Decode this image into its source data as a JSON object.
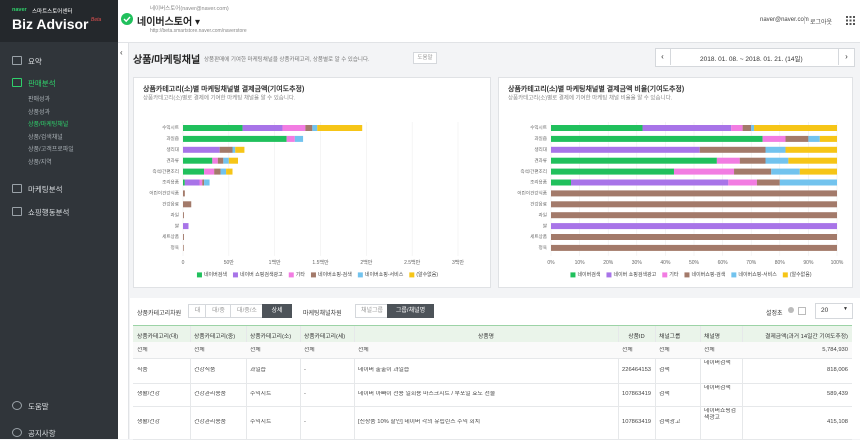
{
  "sidebar": {
    "logo": "naver",
    "center": "스마트스토어센터",
    "title": "Biz Advisor",
    "beta": "Beta",
    "menu": [
      {
        "label": "요약"
      },
      {
        "label": "판매분석",
        "sub": [
          "판매성과",
          "상품성과",
          "상품/마케팅채널",
          "상품/검색채널",
          "상품/고객프로파일",
          "상품/지역"
        ]
      },
      {
        "label": "마케팅분석"
      },
      {
        "label": "쇼핑행동분석"
      }
    ],
    "bottom": [
      "도움말",
      "공지사항"
    ]
  },
  "header": {
    "account": "네이버스토어(naver@naver.com)",
    "store": "네이버스토어 ▾",
    "url": "http://beta.smartstore.naver.com/naverstore",
    "email": "naver@naver.com",
    "logout": "로그아웃"
  },
  "page": {
    "title": "상품/마케팅채널",
    "subtitle": "상품판매에 기여한 마케팅채널을 상품카테고리, 상품별로 알 수 있습니다.",
    "help": "도움말",
    "date_range": "2018. 01. 08. ~ 2018. 01. 21. (14일)"
  },
  "chart_data": [
    {
      "type": "bar",
      "orientation": "horizontal",
      "stacked": true,
      "title": "상품카테고리(소)별 마케팅채널별 결제금액(기여도추정)",
      "subtitle": "상품카테고리(소)별로 결제에 기여한 마케팅 채널을 알 수 있습니다.",
      "categories": [
        "수익시트",
        "과일즙",
        "생리대",
        "견과류",
        "즉석/간편조리",
        "조리용품",
        "어린이건강식품",
        "건강음료",
        "과일",
        "쌀",
        "세트상품",
        "정육"
      ],
      "series": [
        {
          "name": "네이버검색",
          "color": "#20c05c",
          "values": [
            650000,
            1130000,
            0,
            320000,
            230000,
            20000,
            0,
            0,
            0,
            0,
            0,
            0
          ]
        },
        {
          "name": "네이버 쇼핑검색광고",
          "color": "#a874e8",
          "values": [
            435000,
            0,
            400000,
            0,
            0,
            160000,
            0,
            0,
            0,
            60000,
            0,
            0
          ]
        },
        {
          "name": "기타",
          "color": "#f27ce2",
          "values": [
            250000,
            90000,
            0,
            60000,
            110000,
            30000,
            0,
            0,
            0,
            0,
            0,
            0
          ]
        },
        {
          "name": "네이버쇼핑-검색",
          "color": "#a37a6a",
          "values": [
            76000,
            0,
            140000,
            60000,
            70000,
            20000,
            20000,
            90000,
            10000,
            0,
            10000,
            8000
          ]
        },
        {
          "name": "네이버쇼핑-서비스",
          "color": "#72c3ee",
          "values": [
            54000,
            90000,
            30000,
            60000,
            60000,
            60000,
            0,
            0,
            0,
            0,
            0,
            0
          ]
        },
        {
          "name": "(알수없음)",
          "color": "#f6c517",
          "values": [
            490000,
            0,
            100000,
            100000,
            70000,
            0,
            0,
            0,
            0,
            0,
            0,
            0
          ]
        }
      ],
      "xlim": [
        0,
        3000000
      ],
      "xticks": [
        0,
        {
          "value": 500000,
          "label": "50만"
        },
        {
          "value": 1000000,
          "label": "1백만"
        },
        {
          "value": 1500000,
          "label": "1.5백만"
        },
        {
          "value": 2000000,
          "label": "2백만"
        },
        {
          "value": 2500000,
          "label": "2.5백만"
        },
        {
          "value": 3000000,
          "label": "3백만"
        }
      ],
      "grid": true,
      "legend": "bottom"
    },
    {
      "type": "bar",
      "orientation": "horizontal",
      "stacked": true,
      "title": "상품카테고리(소)별 마케팅채널별 결제금액 비율(기여도추정)",
      "subtitle": "상품카테고리(소)별로 결제에 기여한 마케팅 채널 비율을 알 수 있습니다.",
      "categories": [
        "수익시트",
        "과일즙",
        "생리대",
        "견과류",
        "즉석/간편조리",
        "조리용품",
        "어린이건강식품",
        "건강음료",
        "과일",
        "쌀",
        "세트상품",
        "정육"
      ],
      "series": [
        {
          "name": "네이버검색",
          "color": "#20c05c",
          "values": [
            32,
            74,
            0,
            58,
            43,
            7,
            0,
            0,
            0,
            0,
            0,
            0
          ]
        },
        {
          "name": "네이버 쇼핑검색광고",
          "color": "#a874e8",
          "values": [
            31,
            0,
            52,
            0,
            0,
            55,
            0,
            0,
            0,
            100,
            0,
            0
          ]
        },
        {
          "name": "기타",
          "color": "#f27ce2",
          "values": [
            4,
            8,
            0,
            8,
            21,
            10,
            0,
            0,
            0,
            0,
            0,
            0
          ]
        },
        {
          "name": "네이버쇼핑-검색",
          "color": "#a37a6a",
          "values": [
            3,
            8,
            23,
            9,
            13,
            8,
            100,
            100,
            100,
            0,
            100,
            100
          ]
        },
        {
          "name": "네이버쇼핑-서비스",
          "color": "#72c3ee",
          "values": [
            1,
            4,
            7,
            8,
            10,
            20,
            0,
            0,
            0,
            0,
            0,
            0
          ]
        },
        {
          "name": "(알수없음)",
          "color": "#f6c517",
          "values": [
            29,
            6,
            18,
            17,
            13,
            0,
            0,
            0,
            0,
            0,
            0,
            0
          ]
        }
      ],
      "xlim": [
        0,
        100
      ],
      "xticks": [
        {
          "value": 0,
          "label": "0%"
        },
        {
          "value": 10,
          "label": "10%"
        },
        {
          "value": 20,
          "label": "20%"
        },
        {
          "value": 30,
          "label": "30%"
        },
        {
          "value": 40,
          "label": "40%"
        },
        {
          "value": 50,
          "label": "50%"
        },
        {
          "value": 60,
          "label": "60%"
        },
        {
          "value": 70,
          "label": "70%"
        },
        {
          "value": 80,
          "label": "80%"
        },
        {
          "value": 90,
          "label": "90%"
        },
        {
          "value": 100,
          "label": "100%"
        }
      ],
      "grid": true,
      "legend": "bottom"
    }
  ],
  "toolbar": {
    "category_label": "상품카테고리차원",
    "category_buttons": [
      "대",
      "대/중",
      "대/중/소",
      "상세"
    ],
    "channel_label": "마케팅채널차원",
    "channel_buttons": [
      "채널그룹",
      "그룹/채널명"
    ],
    "setting": "설정초",
    "page_size": "20"
  },
  "table": {
    "columns": [
      "상품카테고리(대)",
      "상품카테고리(중)",
      "상품카테고리(소)",
      "상품카테고리(세)",
      "상품명",
      "상품ID",
      "채널그룹",
      "채널명",
      "결제금액(과거 14일간 기여도추정)"
    ],
    "rows": [
      [
        "전체",
        "전체",
        "전체",
        "전체",
        "전체",
        "전체",
        "전체",
        "전체",
        "5,784,930"
      ],
      [
        "식품",
        "건강식품",
        "과일즙",
        "-",
        "네이버 출출이 과일즙",
        "226464153",
        "검색",
        "네이버검색",
        "818,006"
      ],
      [
        "생활/건강",
        "건강관리용품",
        "수익시트",
        "-",
        "네이버 아빠이 전용 일회용 마스크시트 / 부포일 효도 선물",
        "107863419",
        "검색",
        "네이버검색",
        "589,439"
      ],
      [
        "생활/건강",
        "건강관리용품",
        "수익시트",
        "-",
        "[신상품 10% 할인] 네이버 각의 유립린스 수익 회치",
        "107863419",
        "검색광고",
        "네이버쇼핑검색광고",
        "415,108"
      ]
    ]
  }
}
